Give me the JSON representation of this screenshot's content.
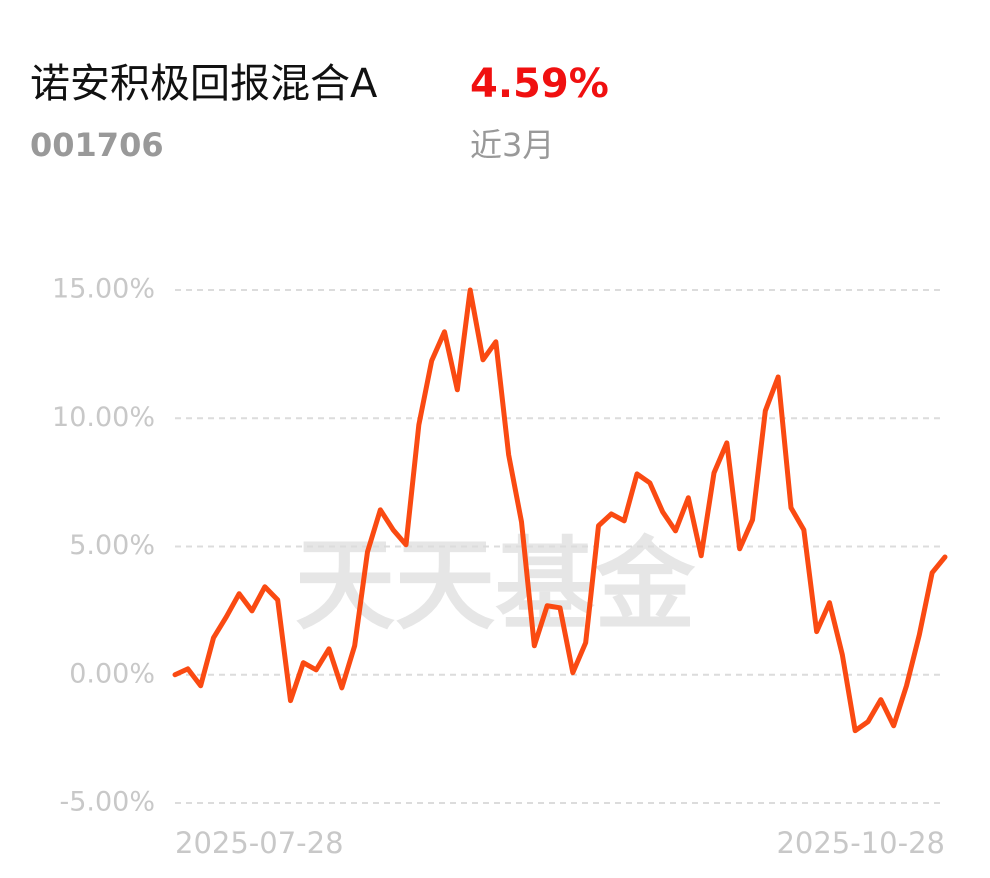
{
  "chart_data": {
    "type": "line",
    "title": "诺安积极回报混合A",
    "subtitle": "001706",
    "annotations": [
      "4.59%",
      "近3月"
    ],
    "watermark": "天天基金",
    "categories": [
      "2025-07-28",
      null,
      null,
      null,
      null,
      null,
      null,
      null,
      null,
      null,
      null,
      null,
      null,
      null,
      null,
      null,
      null,
      null,
      null,
      null,
      null,
      null,
      null,
      null,
      null,
      null,
      null,
      null,
      null,
      null,
      null,
      null,
      null,
      null,
      null,
      null,
      null,
      null,
      null,
      null,
      null,
      null,
      null,
      null,
      null,
      null,
      null,
      null,
      null,
      null,
      null,
      null,
      null,
      null,
      null,
      null,
      null,
      null,
      null,
      null,
      "2025-10-28"
    ],
    "series": [
      {
        "color": "#fa4a12",
        "values": [
          0,
          0.23,
          -0.43,
          1.44,
          2.26,
          3.16,
          2.49,
          3.43,
          2.92,
          -1.01,
          0.47,
          0.19,
          1.01,
          -0.51,
          1.13,
          4.79,
          6.43,
          5.65,
          5.07,
          9.74,
          12.24,
          13.37,
          11.11,
          15.0,
          12.28,
          12.98,
          8.57,
          5.96,
          1.13,
          2.69,
          2.61,
          0.08,
          1.25,
          5.81,
          6.27,
          6.0,
          7.83,
          7.48,
          6.35,
          5.61,
          6.9,
          4.64,
          7.87,
          9.04,
          4.91,
          6.04,
          10.29,
          11.61,
          6.51,
          5.65,
          1.68,
          2.81,
          0.78,
          -2.18,
          -1.83,
          -0.97,
          -1.99,
          -0.43,
          1.56,
          3.98,
          4.59
        ]
      }
    ],
    "ylim": [
      -5,
      15
    ],
    "yticks": [
      {
        "value": 15,
        "label": "15.00%"
      },
      {
        "value": 10,
        "label": "10.00%"
      },
      {
        "value": 5,
        "label": "5.00%"
      },
      {
        "value": 0,
        "label": "0.00%"
      },
      {
        "value": -5,
        "label": "-5.00%"
      }
    ],
    "grid": true
  }
}
